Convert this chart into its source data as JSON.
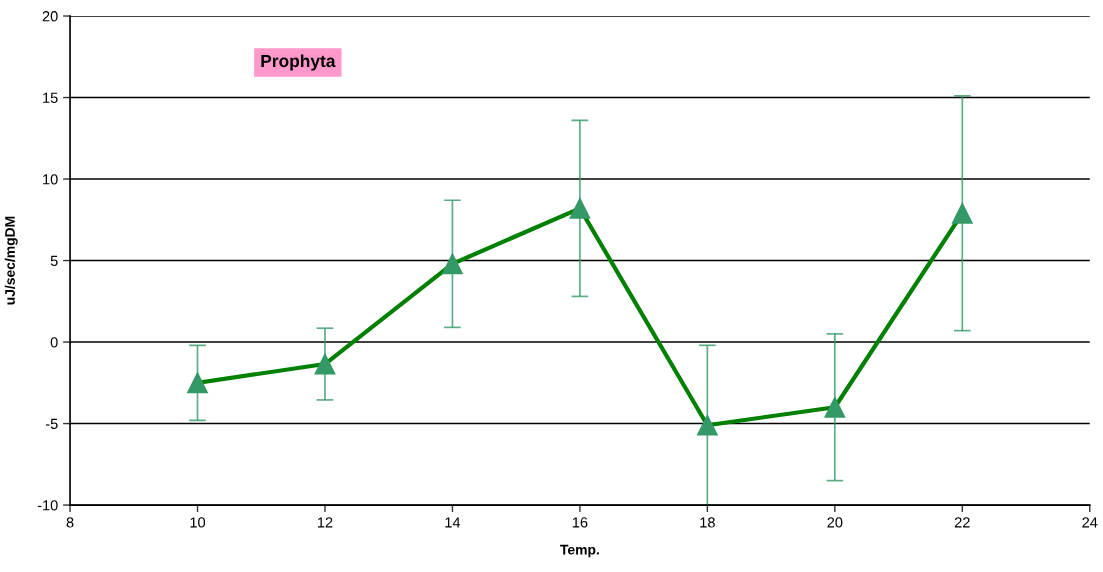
{
  "chart_data": {
    "type": "line",
    "xlabel": "Temp.",
    "ylabel": "uJ/sec/mgDM",
    "annotations": [
      "Prophyta"
    ],
    "x": [
      10,
      12,
      14,
      16,
      18,
      20,
      22
    ],
    "series": [
      {
        "color": "#008000",
        "colors": [
          "#339966",
          "#339966",
          "#339966",
          "#339966",
          "#339966",
          "#339966",
          "#339966"
        ],
        "values": [
          -2.5,
          -1.35,
          4.8,
          8.2,
          -5.1,
          -4.0,
          7.9
        ],
        "errors": [
          2.3,
          2.2,
          3.9,
          5.4,
          4.9,
          4.5,
          7.2
        ]
      }
    ],
    "xlim": [
      8,
      24
    ],
    "xticks": [
      8,
      10,
      12,
      14,
      16,
      18,
      20,
      22,
      24
    ],
    "ylim": [
      -10,
      20
    ],
    "yticks": [
      -10,
      -5,
      0,
      5,
      10,
      15,
      20
    ],
    "grid": "y",
    "marker": "triangle",
    "line_style": "solid"
  }
}
